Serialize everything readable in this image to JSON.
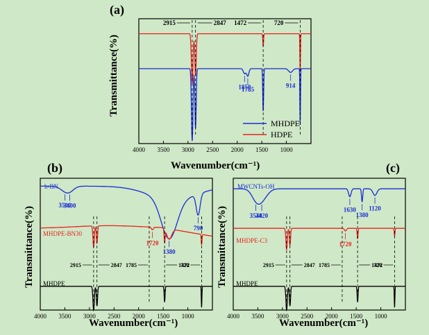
{
  "colors": {
    "background": "#cfe8c7",
    "blue": "#1a2cd6",
    "red": "#e8231f",
    "black": "#000000"
  },
  "chart_data": [
    {
      "panel_label": "(a)",
      "type": "line",
      "xlabel": "Wavenumber(cm⁻¹)",
      "ylabel": "Transmittance(%)",
      "xlim": [
        4000,
        500
      ],
      "ylim": [
        0,
        100
      ],
      "xticks": [
        4000,
        3500,
        3000,
        2500,
        2000,
        1500,
        1000
      ],
      "legend": "bottom-right",
      "series": [
        {
          "name": "HDPE",
          "color": "red",
          "base": 88,
          "peaks": [
            [
              2915,
              40,
              16
            ],
            [
              2847,
              34,
              14
            ],
            [
              1472,
              10,
              8
            ],
            [
              720,
              30,
              6
            ]
          ]
        },
        {
          "name": "MHDPE",
          "color": "blue",
          "base": 60,
          "peaks": [
            [
              2915,
              58,
              15
            ],
            [
              2847,
              48,
              13
            ],
            [
              1850,
              4,
              25
            ],
            [
              1785,
              6,
              22
            ],
            [
              1472,
              34,
              9
            ],
            [
              914,
              3,
              40
            ],
            [
              720,
              45,
              6
            ]
          ]
        }
      ],
      "annotations": [
        {
          "text": "2915",
          "wn": 2915,
          "side": "left",
          "target": "top"
        },
        {
          "text": "2847",
          "wn": 2847,
          "side": "right",
          "target": "top"
        },
        {
          "text": "1472",
          "wn": 1472,
          "side": "left",
          "target": "top"
        },
        {
          "text": "720",
          "wn": 720,
          "side": "left",
          "target": "top"
        },
        {
          "text": "1850",
          "wn": 1850,
          "side": "below",
          "target": "MHDPE"
        },
        {
          "text": "1785",
          "wn": 1785,
          "side": "below",
          "target": "MHDPE"
        },
        {
          "text": "914",
          "wn": 914,
          "side": "below",
          "target": "MHDPE"
        }
      ]
    },
    {
      "panel_label": "(b)",
      "type": "line",
      "xlabel": "Wavenumber(cm⁻¹)",
      "ylabel": "Transmittance(%)",
      "xlim": [
        4000,
        500
      ],
      "ylim": [
        0,
        100
      ],
      "xticks": [
        4000,
        3500,
        3000,
        2500,
        2000,
        1500,
        1000
      ],
      "series": [
        {
          "name": "h-BN",
          "color": "blue",
          "base": 94,
          "slope": "bn",
          "peaks": [
            [
              3500,
              3,
              100
            ],
            [
              3400,
              3,
              90
            ],
            [
              1380,
              30,
              160
            ],
            [
              790,
              16,
              40
            ]
          ]
        },
        {
          "name": "MHDPE-BN30",
          "color": "red",
          "base": 62,
          "slope": "bn30",
          "peaks": [
            [
              2915,
              16,
              14
            ],
            [
              2847,
              13,
              12
            ],
            [
              1720,
              2,
              20
            ],
            [
              1472,
              10,
              10
            ],
            [
              1380,
              8,
              50
            ],
            [
              720,
              8,
              8
            ]
          ]
        },
        {
          "name": "MHDPE",
          "color": "black",
          "base": 18,
          "peaks": [
            [
              2915,
              18,
              14
            ],
            [
              2847,
              15,
              12
            ],
            [
              1472,
              12,
              9
            ],
            [
              720,
              16,
              6
            ]
          ]
        }
      ],
      "annotations": [
        {
          "text": "3500",
          "wn": 3500,
          "target": "h-BN"
        },
        {
          "text": "3400",
          "wn": 3400,
          "target": "h-BN"
        },
        {
          "text": "1380",
          "wn": 1380,
          "target": "h-BN"
        },
        {
          "text": "790",
          "wn": 790,
          "target": "h-BN"
        },
        {
          "text": "1720",
          "wn": 1720,
          "target": "MHDPE-BN30"
        },
        {
          "text": "2915",
          "wn": 2915
        },
        {
          "text": "2847",
          "wn": 2847
        },
        {
          "text": "1785",
          "wn": 1785
        },
        {
          "text": "1472",
          "wn": 1472
        },
        {
          "text": "720",
          "wn": 720
        }
      ]
    },
    {
      "panel_label": "(c)",
      "type": "line",
      "xlabel": "Wavenumber(cm⁻¹)",
      "ylabel": "Transmittance(%)",
      "xlim": [
        4000,
        500
      ],
      "ylim": [
        0,
        100
      ],
      "xticks": [
        4000,
        3500,
        3000,
        2500,
        2000,
        1500,
        1000
      ],
      "series": [
        {
          "name": "MWCNTs-OH",
          "color": "blue",
          "base": 92,
          "peaks": [
            [
              3540,
              6,
              90
            ],
            [
              3420,
              8,
              110
            ],
            [
              1630,
              6,
              25
            ],
            [
              1380,
              10,
              12
            ],
            [
              1120,
              5,
              40
            ]
          ]
        },
        {
          "name": "MHDPE-C3",
          "color": "red",
          "base": 62,
          "peaks": [
            [
              2915,
              16,
              14
            ],
            [
              2847,
              13,
              12
            ],
            [
              1720,
              2,
              20
            ],
            [
              1472,
              8,
              9
            ],
            [
              720,
              6,
              8
            ]
          ]
        },
        {
          "name": "MHDPE",
          "color": "black",
          "base": 18,
          "peaks": [
            [
              2915,
              18,
              14
            ],
            [
              2847,
              15,
              12
            ],
            [
              1472,
              12,
              9
            ],
            [
              720,
              16,
              6
            ]
          ]
        }
      ],
      "annotations": [
        {
          "text": "3540",
          "wn": 3540,
          "target": "MWCNTs-OH"
        },
        {
          "text": "3420",
          "wn": 3420,
          "target": "MWCNTs-OH"
        },
        {
          "text": "1630",
          "wn": 1630,
          "target": "MWCNTs-OH"
        },
        {
          "text": "1380",
          "wn": 1380,
          "target": "MWCNTs-OH"
        },
        {
          "text": "1120",
          "wn": 1120,
          "target": "MWCNTs-OH"
        },
        {
          "text": "1720",
          "wn": 1720,
          "target": "MHDPE-C3"
        },
        {
          "text": "2915",
          "wn": 2915
        },
        {
          "text": "2847",
          "wn": 2847
        },
        {
          "text": "1785",
          "wn": 1785
        },
        {
          "text": "1472",
          "wn": 1472
        },
        {
          "text": "720",
          "wn": 720
        }
      ]
    }
  ]
}
